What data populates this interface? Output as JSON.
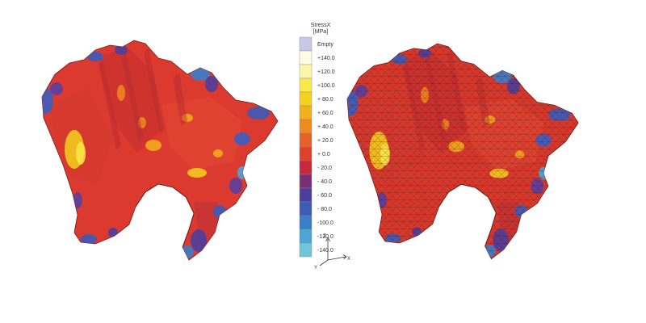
{
  "legend": {
    "title_line1": "StressX",
    "title_line2": "[MPa]",
    "empty_label": "Empty",
    "empty_color": "#c9c6e6",
    "labels": [
      "+140.0",
      "+120.0",
      "+100.0",
      "+ 80.0",
      "+ 60.0",
      "+ 40.0",
      "+ 20.0",
      "+ 0.0",
      "- 20.0",
      "- 40.0",
      "- 60.0",
      "- 80.0",
      "-100.0",
      "-120.0",
      "-140.0"
    ],
    "bands": [
      "#fdfbe0",
      "#fbf7a6",
      "#f7ea4a",
      "#f4d21c",
      "#f2b01a",
      "#ef8a1f",
      "#e9612a",
      "#e0402c",
      "#c8283e",
      "#7a2e78",
      "#4c3e9c",
      "#3b5cb8",
      "#3a7ec9",
      "#4aa7d6",
      "#6ec7d8"
    ]
  },
  "axis_triad": {
    "z_label": "Z",
    "x_label": "X",
    "y_label": "Y"
  },
  "models": [
    {
      "name": "contour-plot",
      "mesh": false
    },
    {
      "name": "contour-plot-with-mesh",
      "mesh": true
    }
  ]
}
